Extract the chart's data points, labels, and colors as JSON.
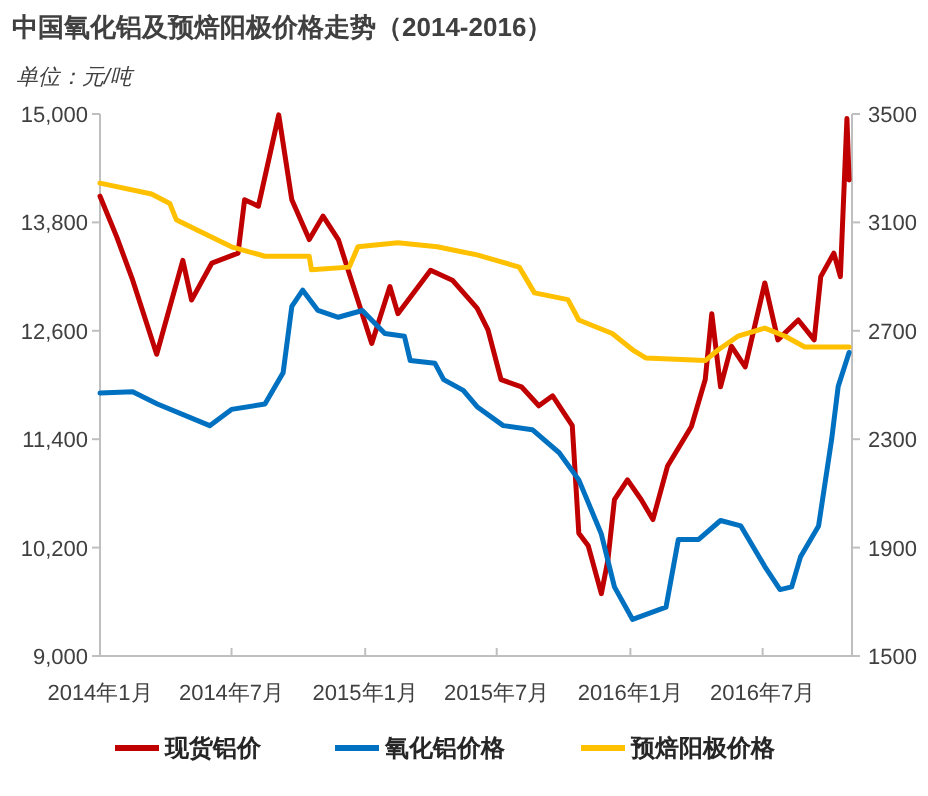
{
  "chart_data": {
    "type": "line",
    "title": "中国氧化铝及预焙阳极价格走势（2014-2016）",
    "ylabel": "单位：元/吨",
    "xlim": [
      "2014-01-01",
      "2016-11-01"
    ],
    "xticks": [
      {
        "value": "2014-01-01",
        "label": "2014年1月"
      },
      {
        "value": "2014-07-01",
        "label": "2014年7月"
      },
      {
        "value": "2015-01-01",
        "label": "2015年1月"
      },
      {
        "value": "2015-07-01",
        "label": "2015年7月"
      },
      {
        "value": "2016-01-01",
        "label": "2016年1月"
      },
      {
        "value": "2016-07-01",
        "label": "2016年7月"
      }
    ],
    "ylim": [
      9000,
      15000
    ],
    "yticks": [
      {
        "value": 9000,
        "label": "9,000"
      },
      {
        "value": 10200,
        "label": "10,200"
      },
      {
        "value": 11400,
        "label": "11,400"
      },
      {
        "value": 12600,
        "label": "12,600"
      },
      {
        "value": 13800,
        "label": "13,800"
      },
      {
        "value": 15000,
        "label": "15,000"
      }
    ],
    "y2lim": [
      1500,
      3500
    ],
    "y2ticks": [
      1500,
      1900,
      2300,
      2700,
      3100,
      3500
    ],
    "legend": "bottom",
    "series": [
      {
        "name": "现货铝价",
        "color": "#c00000",
        "axis": "y",
        "x": [
          "2014-01-01",
          "2014-01-24",
          "2014-02-15",
          "2014-03-20",
          "2014-04-25",
          "2014-05-07",
          "2014-06-04",
          "2014-07-10",
          "2014-07-19",
          "2014-08-07",
          "2014-09-04",
          "2014-09-22",
          "2014-10-16",
          "2014-11-04",
          "2014-11-25",
          "2014-12-13",
          "2015-01-10",
          "2015-02-04",
          "2015-02-15",
          "2015-04-01",
          "2015-05-01",
          "2015-06-04",
          "2015-06-19",
          "2015-07-07",
          "2015-08-04",
          "2015-08-28",
          "2015-09-16",
          "2015-10-13",
          "2015-10-22",
          "2015-11-04",
          "2015-11-22",
          "2015-12-01",
          "2015-12-10",
          "2015-12-28",
          "2016-01-16",
          "2016-02-01",
          "2016-02-21",
          "2016-03-25",
          "2016-04-13",
          "2016-04-22",
          "2016-05-04",
          "2016-05-19",
          "2016-06-07",
          "2016-07-04",
          "2016-07-22",
          "2016-08-19",
          "2016-09-10",
          "2016-09-19",
          "2016-10-07",
          "2016-10-16",
          "2016-10-25",
          "2016-10-28"
        ],
        "values": [
          14090,
          13640,
          13160,
          12340,
          13380,
          12940,
          13350,
          13460,
          14050,
          13980,
          14990,
          14050,
          13610,
          13870,
          13610,
          13160,
          12460,
          13090,
          12790,
          13270,
          13160,
          12850,
          12610,
          12060,
          11980,
          11770,
          11880,
          11550,
          10360,
          10220,
          9690,
          10060,
          10730,
          10950,
          10730,
          10510,
          11100,
          11540,
          12060,
          12790,
          11980,
          12430,
          12200,
          13130,
          12500,
          12720,
          12500,
          13200,
          13460,
          13200,
          14950,
          14270
        ]
      },
      {
        "name": "氧化铝价格",
        "color": "#0070c0",
        "axis": "y2",
        "x": [
          "2014-01-01",
          "2014-02-15",
          "2014-03-21",
          "2014-06-01",
          "2014-07-01",
          "2014-08-16",
          "2014-09-10",
          "2014-09-22",
          "2014-10-07",
          "2014-10-28",
          "2014-11-25",
          "2014-12-28",
          "2015-01-28",
          "2015-02-24",
          "2015-03-04",
          "2015-04-07",
          "2015-04-19",
          "2015-05-16",
          "2015-06-04",
          "2015-07-10",
          "2015-08-19",
          "2015-09-25",
          "2015-10-22",
          "2015-11-22",
          "2015-12-10",
          "2016-01-04",
          "2016-02-19",
          "2016-03-07",
          "2016-04-04",
          "2016-05-04",
          "2016-06-01",
          "2016-07-04",
          "2016-07-25",
          "2016-08-10",
          "2016-08-22",
          "2016-09-16",
          "2016-10-04",
          "2016-10-13",
          "2016-10-28"
        ],
        "values": [
          2470,
          2475,
          2430,
          2350,
          2410,
          2430,
          2545,
          2790,
          2850,
          2775,
          2750,
          2775,
          2690,
          2680,
          2590,
          2580,
          2520,
          2480,
          2420,
          2350,
          2335,
          2250,
          2150,
          1950,
          1755,
          1635,
          1680,
          1930,
          1930,
          2000,
          1980,
          1830,
          1745,
          1755,
          1865,
          1980,
          2300,
          2495,
          2620
        ]
      },
      {
        "name": "预焙阳极价格",
        "color": "#ffc000",
        "axis": "y2",
        "x": [
          "2014-01-01",
          "2014-03-13",
          "2014-04-07",
          "2014-04-16",
          "2014-05-16",
          "2014-07-01",
          "2014-08-16",
          "2014-10-16",
          "2014-10-19",
          "2014-12-10",
          "2014-12-22",
          "2015-02-15",
          "2015-04-10",
          "2015-06-04",
          "2015-08-01",
          "2015-08-22",
          "2015-10-07",
          "2015-10-22",
          "2015-12-07",
          "2016-01-04",
          "2016-01-22",
          "2016-04-13",
          "2016-05-01",
          "2016-05-28",
          "2016-07-04",
          "2016-08-01",
          "2016-08-28",
          "2016-10-28"
        ],
        "values": [
          3245,
          3205,
          3170,
          3110,
          3070,
          3010,
          2975,
          2975,
          2925,
          2935,
          3010,
          3025,
          3010,
          2980,
          2935,
          2840,
          2815,
          2740,
          2690,
          2630,
          2600,
          2590,
          2630,
          2680,
          2710,
          2680,
          2640,
          2640
        ]
      }
    ]
  }
}
